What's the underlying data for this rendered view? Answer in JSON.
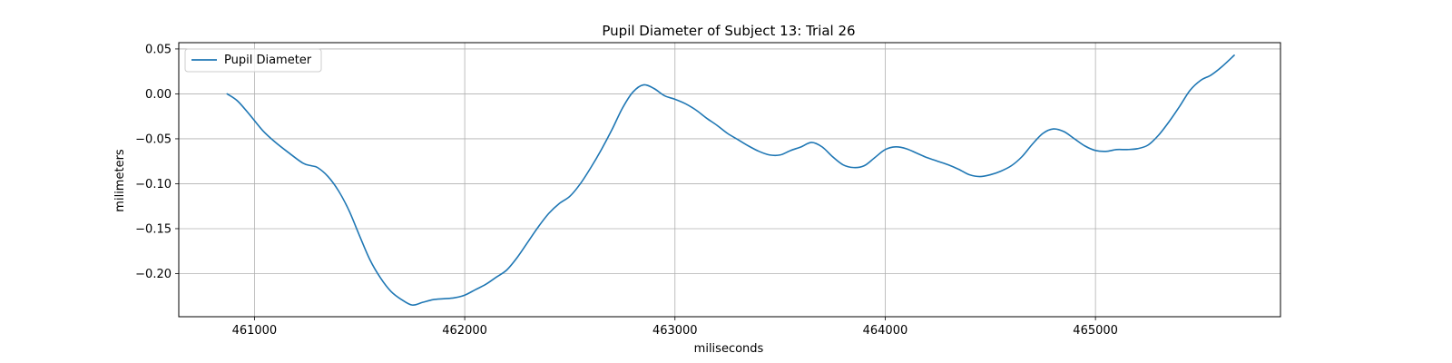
{
  "chart_data": {
    "type": "line",
    "title": "Pupil Diameter of Subject 13: Trial 26",
    "xlabel": "miliseconds",
    "ylabel": "milimeters",
    "xlim": [
      460640,
      465880
    ],
    "ylim": [
      -0.248,
      0.057
    ],
    "xticks": [
      461000,
      462000,
      463000,
      464000,
      465000
    ],
    "yticks": [
      0.05,
      0.0,
      -0.05,
      -0.1,
      -0.15,
      -0.2
    ],
    "xtick_labels": [
      "461000",
      "462000",
      "463000",
      "464000",
      "465000"
    ],
    "ytick_labels": [
      "0.05",
      "0.00",
      "−0.05",
      "−0.10",
      "−0.15",
      "−0.20"
    ],
    "grid": true,
    "legend_position": "upper-left",
    "line_color": "#1f77b4",
    "series": [
      {
        "name": "Pupil Diameter",
        "x": [
          460870,
          460920,
          460980,
          461040,
          461100,
          461160,
          461230,
          461270,
          461300,
          461350,
          461400,
          461450,
          461500,
          461550,
          461600,
          461650,
          461700,
          461750,
          461800,
          461850,
          461900,
          461950,
          462000,
          462050,
          462100,
          462150,
          462200,
          462250,
          462300,
          462350,
          462400,
          462450,
          462500,
          462550,
          462600,
          462650,
          462700,
          462750,
          462800,
          462850,
          462900,
          462950,
          463000,
          463050,
          463100,
          463150,
          463200,
          463250,
          463300,
          463350,
          463400,
          463450,
          463500,
          463550,
          463600,
          463650,
          463700,
          463750,
          463800,
          463850,
          463900,
          463950,
          464000,
          464050,
          464100,
          464150,
          464200,
          464250,
          464300,
          464350,
          464400,
          464450,
          464500,
          464550,
          464600,
          464650,
          464700,
          464750,
          464800,
          464850,
          464900,
          464950,
          465000,
          465050,
          465100,
          465150,
          465200,
          465250,
          465300,
          465350,
          465400,
          465450,
          465500,
          465550,
          465600,
          465660
        ],
        "y": [
          0.0,
          -0.008,
          -0.024,
          -0.041,
          -0.054,
          -0.065,
          -0.077,
          -0.08,
          -0.082,
          -0.092,
          -0.108,
          -0.13,
          -0.158,
          -0.185,
          -0.205,
          -0.22,
          -0.229,
          -0.235,
          -0.232,
          -0.229,
          -0.228,
          -0.227,
          -0.224,
          -0.218,
          -0.212,
          -0.204,
          -0.196,
          -0.182,
          -0.165,
          -0.148,
          -0.133,
          -0.122,
          -0.114,
          -0.1,
          -0.082,
          -0.062,
          -0.04,
          -0.016,
          0.002,
          0.01,
          0.006,
          -0.002,
          -0.006,
          -0.011,
          -0.018,
          -0.027,
          -0.035,
          -0.044,
          -0.051,
          -0.058,
          -0.064,
          -0.068,
          -0.068,
          -0.063,
          -0.059,
          -0.054,
          -0.059,
          -0.07,
          -0.079,
          -0.082,
          -0.08,
          -0.071,
          -0.062,
          -0.059,
          -0.061,
          -0.066,
          -0.071,
          -0.075,
          -0.079,
          -0.084,
          -0.09,
          -0.092,
          -0.09,
          -0.086,
          -0.08,
          -0.07,
          -0.056,
          -0.044,
          -0.039,
          -0.042,
          -0.05,
          -0.058,
          -0.063,
          -0.064,
          -0.062,
          -0.062,
          -0.061,
          -0.057,
          -0.046,
          -0.031,
          -0.014,
          0.004,
          0.015,
          0.021,
          0.03,
          0.043
        ]
      }
    ]
  }
}
